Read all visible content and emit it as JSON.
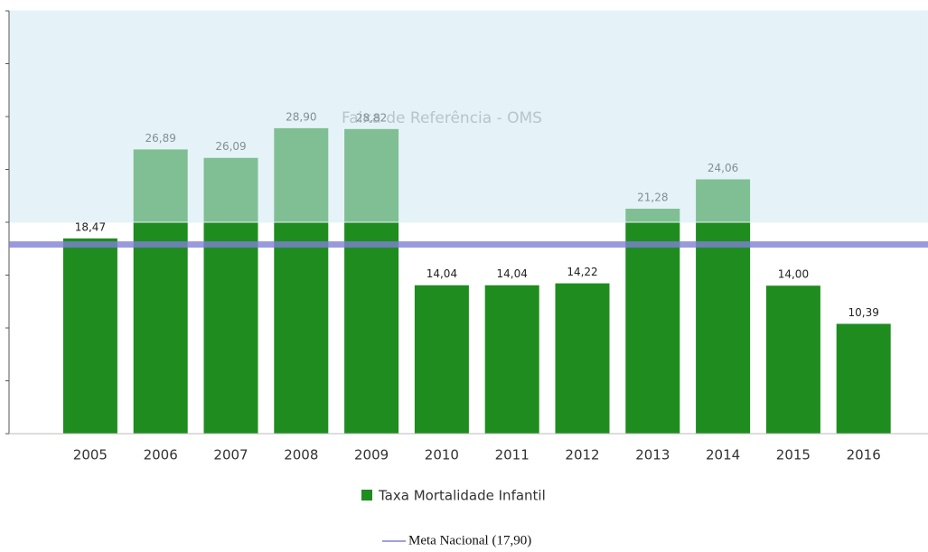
{
  "chart_data": {
    "type": "bar",
    "categories": [
      "2005",
      "2006",
      "2007",
      "2008",
      "2009",
      "2010",
      "2011",
      "2012",
      "2013",
      "2014",
      "2015",
      "2016"
    ],
    "series": [
      {
        "name": "Taxa Mortalidade Infantil",
        "color": "#1f8c1f",
        "values": [
          18.47,
          26.89,
          26.09,
          28.9,
          28.82,
          14.04,
          14.04,
          14.22,
          21.28,
          24.06,
          14.0,
          10.39
        ],
        "value_labels": [
          "18,47",
          "26,89",
          "26,09",
          "28,90",
          "28,82",
          "14,04",
          "14,04",
          "14,22",
          "21,28",
          "24,06",
          "14,00",
          "10,39"
        ]
      }
    ],
    "ylim": [
      0,
      40
    ],
    "yticks": [
      0,
      5,
      10,
      15,
      20,
      25,
      30,
      35,
      40
    ],
    "reference_band": {
      "label": "Faixa de Referência - OMS",
      "range": [
        20,
        40
      ],
      "color": "#cfe9f3"
    },
    "reference_line": {
      "name": "Meta Nacional (17,90)",
      "value": 17.9,
      "color": "#7f7fd4"
    }
  }
}
